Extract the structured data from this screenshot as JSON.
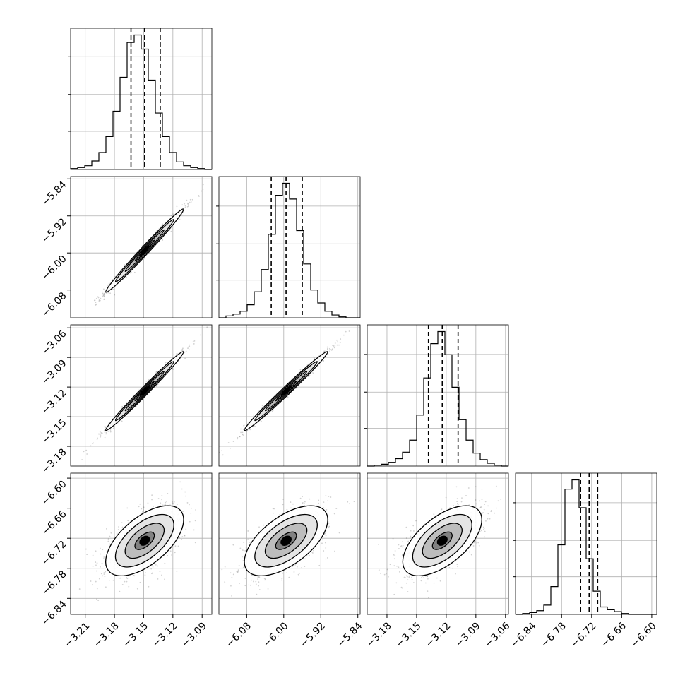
{
  "chart_data": {
    "type": "corner",
    "parameters": [
      {
        "index": 0,
        "range": [
          -3.225,
          -3.08
        ],
        "ticks": [
          "-3.21",
          "-3.18",
          "-3.15",
          "-3.12",
          "-3.09"
        ],
        "tick_values": [
          -3.21,
          -3.18,
          -3.15,
          -3.12,
          -3.09
        ],
        "quantiles": [
          -3.163,
          -3.149,
          -3.133
        ]
      },
      {
        "index": 1,
        "range": [
          -6.14,
          -5.835
        ],
        "ticks": [
          "-6.08",
          "-6.00",
          "-5.92",
          "-5.84"
        ],
        "tick_values": [
          -6.08,
          -6.0,
          -5.92,
          -5.84
        ],
        "quantiles": [
          -6.027,
          -5.995,
          -5.96
        ]
      },
      {
        "index": 2,
        "range": [
          -3.2,
          -3.057
        ],
        "ticks": [
          "-3.18",
          "-3.15",
          "-3.12",
          "-3.09",
          "-3.06"
        ],
        "tick_values": [
          -3.18,
          -3.15,
          -3.12,
          -3.09,
          -3.06
        ],
        "quantiles": [
          -3.138,
          -3.124,
          -3.108
        ]
      },
      {
        "index": 3,
        "range": [
          -6.872,
          -6.59
        ],
        "ticks": [
          "-6.84",
          "-6.78",
          "-6.72",
          "-6.66",
          "-6.60"
        ],
        "tick_values": [
          -6.84,
          -6.78,
          -6.72,
          -6.66,
          -6.6
        ],
        "quantiles": [
          -6.742,
          -6.725,
          -6.708
        ]
      }
    ],
    "histograms": [
      {
        "param": 0,
        "bins": 20,
        "counts": [
          1,
          2,
          4,
          9,
          18,
          35,
          62,
          98,
          135,
          143,
          128,
          95,
          60,
          35,
          18,
          8,
          4,
          2,
          1,
          0
        ]
      },
      {
        "param": 1,
        "bins": 20,
        "counts": [
          0,
          2,
          4,
          7,
          14,
          28,
          52,
          90,
          132,
          145,
          128,
          94,
          58,
          30,
          16,
          7,
          3,
          1,
          0,
          0
        ]
      },
      {
        "param": 2,
        "bins": 20,
        "counts": [
          0,
          1,
          2,
          4,
          8,
          15,
          28,
          55,
          95,
          132,
          145,
          120,
          85,
          50,
          28,
          14,
          7,
          3,
          1,
          0
        ]
      },
      {
        "param": 3,
        "bins": 20,
        "counts": [
          0,
          1,
          2,
          4,
          10,
          30,
          75,
          135,
          145,
          115,
          60,
          25,
          8,
          5,
          3,
          1,
          0,
          0,
          0,
          0
        ]
      }
    ],
    "pairs": [
      {
        "x": 0,
        "y": 1,
        "mean": [
          -3.149,
          -5.995
        ],
        "sd": [
          0.02,
          0.045
        ],
        "corr": 0.99
      },
      {
        "x": 0,
        "y": 2,
        "mean": [
          -3.149,
          -3.124
        ],
        "sd": [
          0.02,
          0.02
        ],
        "corr": 0.99
      },
      {
        "x": 1,
        "y": 2,
        "mean": [
          -5.995,
          -3.124
        ],
        "sd": [
          0.045,
          0.02
        ],
        "corr": 0.99
      },
      {
        "x": 0,
        "y": 3,
        "mean": [
          -3.149,
          -6.725
        ],
        "sd": [
          0.02,
          0.035
        ],
        "corr": 0.6
      },
      {
        "x": 1,
        "y": 3,
        "mean": [
          -5.995,
          -6.725
        ],
        "sd": [
          0.045,
          0.035
        ],
        "corr": 0.6
      },
      {
        "x": 2,
        "y": 3,
        "mean": [
          -3.124,
          -6.725
        ],
        "sd": [
          0.02,
          0.035
        ],
        "corr": 0.6
      }
    ],
    "contour_levels_sigma": [
      0.5,
      1.0,
      1.5,
      2.0
    ],
    "grid": true,
    "title": "",
    "axis_labels": []
  }
}
